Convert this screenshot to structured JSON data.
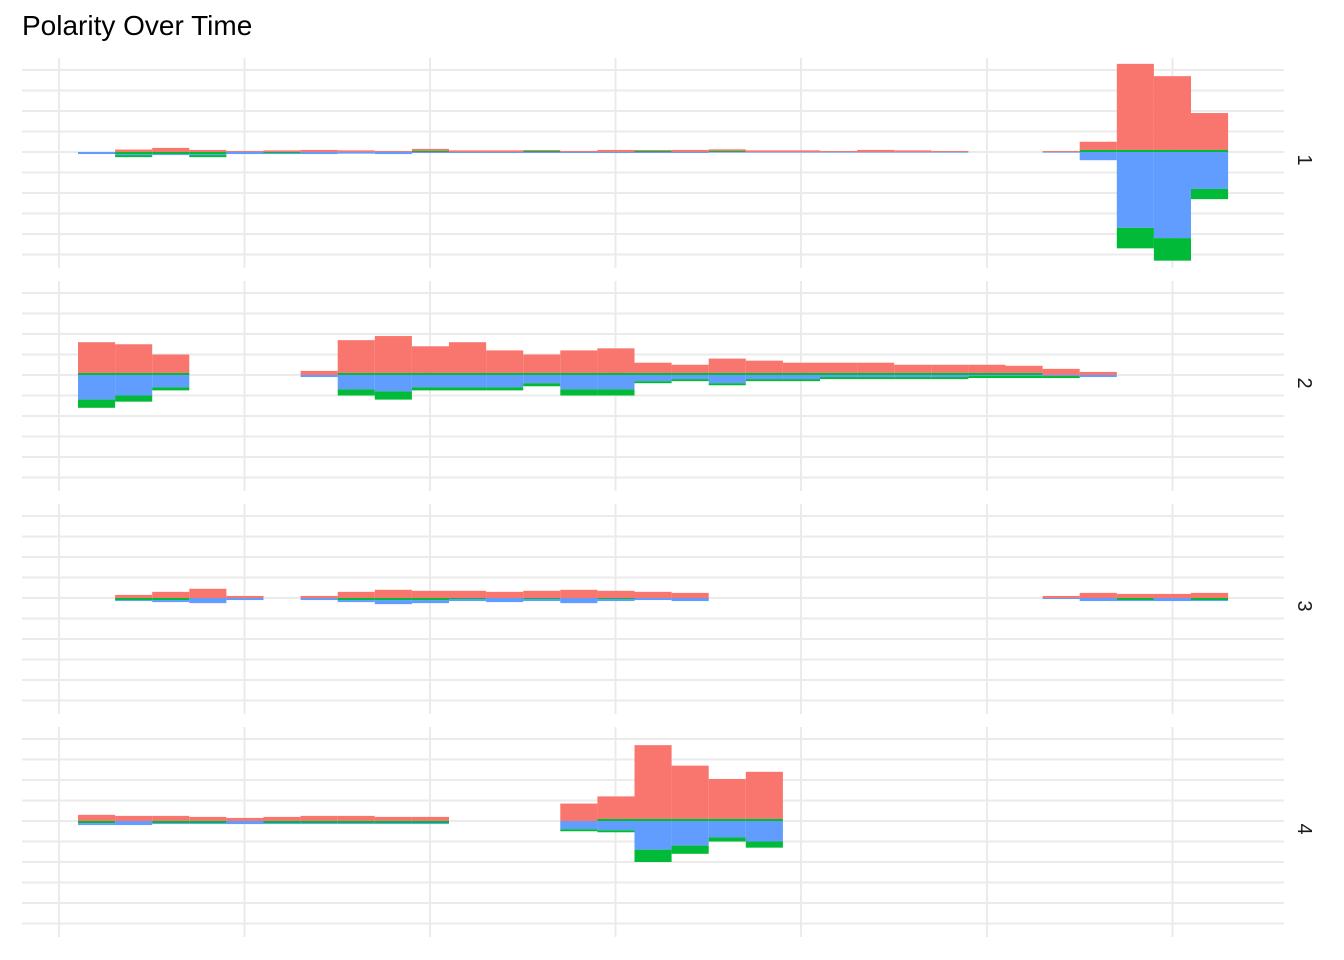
{
  "chart_data": {
    "type": "bar",
    "title": "Polarity Over Time",
    "xlabel": "",
    "ylabel": "",
    "grid": true,
    "legend": "none",
    "stacked": true,
    "x_note": "time bins 0..32 (no tick labels shown)",
    "ylim": [
      -5,
      5
    ],
    "colors": {
      "red": "#F8766D",
      "green": "#00BA38",
      "blue": "#619CFF",
      "grid": "#EBEBEB"
    },
    "facets": [
      {
        "label": "1",
        "bins": [
          {
            "x": 0,
            "red": 0.0,
            "green": 0.0,
            "blue": -0.1
          },
          {
            "x": 1,
            "red": 0.12,
            "green": -0.1,
            "blue": -0.05
          },
          {
            "x": 2,
            "red": 0.2,
            "green": -0.1,
            "blue": -0.05
          },
          {
            "x": 3,
            "red": 0.1,
            "green": -0.1,
            "blue": -0.05
          },
          {
            "x": 4,
            "red": 0.05,
            "green": 0.0,
            "blue": -0.1
          },
          {
            "x": 5,
            "red": 0.08,
            "green": -0.05,
            "blue": -0.05
          },
          {
            "x": 6,
            "red": 0.1,
            "green": 0.0,
            "blue": -0.1
          },
          {
            "x": 7,
            "red": 0.08,
            "green": 0.0,
            "blue": -0.08
          },
          {
            "x": 8,
            "red": 0.05,
            "green": 0.0,
            "blue": -0.1
          },
          {
            "x": 9,
            "red": 0.1,
            "green": 0.05,
            "blue": -0.05
          },
          {
            "x": 10,
            "red": 0.08,
            "green": 0.0,
            "blue": -0.05
          },
          {
            "x": 11,
            "red": 0.08,
            "green": 0.0,
            "blue": -0.05
          },
          {
            "x": 12,
            "red": 0.05,
            "green": 0.05,
            "blue": -0.05
          },
          {
            "x": 13,
            "red": 0.05,
            "green": 0.0,
            "blue": -0.05
          },
          {
            "x": 14,
            "red": 0.1,
            "green": 0.0,
            "blue": -0.05
          },
          {
            "x": 15,
            "red": 0.05,
            "green": 0.05,
            "blue": -0.05
          },
          {
            "x": 16,
            "red": 0.1,
            "green": 0.0,
            "blue": -0.05
          },
          {
            "x": 17,
            "red": 0.08,
            "green": 0.05,
            "blue": -0.03
          },
          {
            "x": 18,
            "red": 0.08,
            "green": 0.0,
            "blue": -0.03
          },
          {
            "x": 19,
            "red": 0.08,
            "green": 0.0,
            "blue": -0.03
          },
          {
            "x": 20,
            "red": 0.05,
            "green": 0.0,
            "blue": -0.03
          },
          {
            "x": 21,
            "red": 0.1,
            "green": 0.0,
            "blue": -0.03
          },
          {
            "x": 22,
            "red": 0.08,
            "green": 0.0,
            "blue": -0.03
          },
          {
            "x": 23,
            "red": 0.05,
            "green": 0.0,
            "blue": -0.03
          },
          {
            "x": 26,
            "red": 0.05,
            "green": 0.0,
            "blue": -0.03
          },
          {
            "x": 27,
            "red": 0.4,
            "green": 0.1,
            "blue": -0.4
          },
          {
            "x": 28,
            "red": 4.2,
            "green": 0.1,
            "blue": -3.7
          },
          {
            "x": 29,
            "red": 3.6,
            "green": 0.1,
            "blue": -4.2
          },
          {
            "x": 30,
            "red": 1.8,
            "green": 0.1,
            "blue": -1.8
          }
        ],
        "neg_green": {
          "28": -1.0,
          "29": -1.1,
          "30": -0.5,
          "1": -0.1,
          "3": -0.1
        }
      },
      {
        "label": "2",
        "bins": [
          {
            "x": 0,
            "red": 1.5,
            "green": 0.1,
            "blue": -1.2
          },
          {
            "x": 1,
            "red": 1.4,
            "green": 0.1,
            "blue": -1.0
          },
          {
            "x": 2,
            "red": 0.9,
            "green": 0.1,
            "blue": -0.6
          },
          {
            "x": 6,
            "red": 0.2,
            "green": 0.0,
            "blue": -0.1
          },
          {
            "x": 7,
            "red": 1.6,
            "green": 0.1,
            "blue": -0.7
          },
          {
            "x": 8,
            "red": 1.8,
            "green": 0.1,
            "blue": -0.8
          },
          {
            "x": 9,
            "red": 1.3,
            "green": 0.1,
            "blue": -0.6
          },
          {
            "x": 10,
            "red": 1.5,
            "green": 0.1,
            "blue": -0.6
          },
          {
            "x": 11,
            "red": 1.1,
            "green": 0.1,
            "blue": -0.6
          },
          {
            "x": 12,
            "red": 0.9,
            "green": 0.1,
            "blue": -0.4
          },
          {
            "x": 13,
            "red": 1.1,
            "green": 0.1,
            "blue": -0.7
          },
          {
            "x": 14,
            "red": 1.2,
            "green": 0.1,
            "blue": -0.7
          },
          {
            "x": 15,
            "red": 0.5,
            "green": 0.1,
            "blue": -0.3
          },
          {
            "x": 16,
            "red": 0.4,
            "green": 0.1,
            "blue": -0.2
          },
          {
            "x": 17,
            "red": 0.7,
            "green": 0.1,
            "blue": -0.4
          },
          {
            "x": 18,
            "red": 0.6,
            "green": 0.1,
            "blue": -0.2
          },
          {
            "x": 19,
            "red": 0.5,
            "green": 0.1,
            "blue": -0.2
          },
          {
            "x": 20,
            "red": 0.5,
            "green": 0.1,
            "blue": -0.1
          },
          {
            "x": 21,
            "red": 0.5,
            "green": 0.1,
            "blue": -0.1
          },
          {
            "x": 22,
            "red": 0.4,
            "green": 0.1,
            "blue": -0.1
          },
          {
            "x": 23,
            "red": 0.4,
            "green": 0.1,
            "blue": -0.1
          },
          {
            "x": 24,
            "red": 0.4,
            "green": 0.1,
            "blue": -0.05
          },
          {
            "x": 25,
            "red": 0.35,
            "green": 0.1,
            "blue": -0.05
          },
          {
            "x": 26,
            "red": 0.3,
            "green": 0.0,
            "blue": -0.05
          },
          {
            "x": 27,
            "red": 0.15,
            "green": 0.0,
            "blue": -0.1
          }
        ],
        "neg_green": {
          "0": -0.4,
          "1": -0.3,
          "2": -0.15,
          "7": -0.3,
          "8": -0.4,
          "9": -0.15,
          "10": -0.15,
          "11": -0.15,
          "12": -0.15,
          "13": -0.3,
          "14": -0.3,
          "15": -0.1,
          "16": -0.1,
          "17": -0.1,
          "18": -0.1,
          "19": -0.1,
          "20": -0.1,
          "21": -0.1,
          "22": -0.1,
          "23": -0.1,
          "24": -0.1,
          "25": -0.1,
          "26": -0.1
        }
      },
      {
        "label": "3",
        "bins": [
          {
            "x": 1,
            "red": 0.15,
            "green": -0.1,
            "blue": -0.05
          },
          {
            "x": 2,
            "red": 0.3,
            "green": -0.1,
            "blue": -0.1
          },
          {
            "x": 3,
            "red": 0.45,
            "green": 0.0,
            "blue": -0.25
          },
          {
            "x": 4,
            "red": 0.1,
            "green": 0.0,
            "blue": -0.1
          },
          {
            "x": 6,
            "red": 0.1,
            "green": 0.0,
            "blue": -0.1
          },
          {
            "x": 7,
            "red": 0.3,
            "green": -0.1,
            "blue": -0.1
          },
          {
            "x": 8,
            "red": 0.4,
            "green": -0.1,
            "blue": -0.2
          },
          {
            "x": 9,
            "red": 0.35,
            "green": -0.1,
            "blue": -0.15
          },
          {
            "x": 10,
            "red": 0.35,
            "green": -0.05,
            "blue": -0.1
          },
          {
            "x": 11,
            "red": 0.3,
            "green": 0.0,
            "blue": -0.2
          },
          {
            "x": 12,
            "red": 0.35,
            "green": -0.05,
            "blue": -0.1
          },
          {
            "x": 13,
            "red": 0.4,
            "green": 0.0,
            "blue": -0.25
          },
          {
            "x": 14,
            "red": 0.35,
            "green": -0.05,
            "blue": -0.1
          },
          {
            "x": 15,
            "red": 0.3,
            "green": 0.0,
            "blue": -0.1
          },
          {
            "x": 16,
            "red": 0.25,
            "green": 0.0,
            "blue": -0.15
          },
          {
            "x": 26,
            "red": 0.1,
            "green": 0.0,
            "blue": -0.05
          },
          {
            "x": 27,
            "red": 0.25,
            "green": 0.0,
            "blue": -0.15
          },
          {
            "x": 28,
            "red": 0.2,
            "green": -0.1,
            "blue": -0.05
          },
          {
            "x": 29,
            "red": 0.2,
            "green": 0.0,
            "blue": -0.15
          },
          {
            "x": 30,
            "red": 0.25,
            "green": -0.1,
            "blue": -0.05
          }
        ],
        "neg_green": {}
      },
      {
        "label": "4",
        "bins": [
          {
            "x": 0,
            "red": 0.3,
            "green": -0.1,
            "blue": -0.1
          },
          {
            "x": 1,
            "red": 0.25,
            "green": 0.0,
            "blue": -0.2
          },
          {
            "x": 2,
            "red": 0.25,
            "green": -0.1,
            "blue": -0.05
          },
          {
            "x": 3,
            "red": 0.2,
            "green": -0.1,
            "blue": -0.05
          },
          {
            "x": 4,
            "red": 0.15,
            "green": 0.0,
            "blue": -0.15
          },
          {
            "x": 5,
            "red": 0.2,
            "green": -0.1,
            "blue": -0.05
          },
          {
            "x": 6,
            "red": 0.25,
            "green": -0.1,
            "blue": -0.05
          },
          {
            "x": 7,
            "red": 0.25,
            "green": -0.1,
            "blue": -0.05
          },
          {
            "x": 8,
            "red": 0.2,
            "green": -0.1,
            "blue": -0.05
          },
          {
            "x": 9,
            "red": 0.2,
            "green": -0.1,
            "blue": -0.05
          },
          {
            "x": 13,
            "red": 0.85,
            "green": 0.0,
            "blue": -0.4
          },
          {
            "x": 14,
            "red": 1.1,
            "green": 0.1,
            "blue": -0.45
          },
          {
            "x": 15,
            "red": 3.6,
            "green": 0.1,
            "blue": -1.4
          },
          {
            "x": 16,
            "red": 2.6,
            "green": 0.1,
            "blue": -1.2
          },
          {
            "x": 17,
            "red": 1.95,
            "green": 0.1,
            "blue": -0.8
          },
          {
            "x": 18,
            "red": 2.3,
            "green": 0.1,
            "blue": -1.0
          }
        ],
        "neg_green": {
          "13": -0.1,
          "14": -0.1,
          "15": -0.6,
          "16": -0.4,
          "17": -0.2,
          "18": -0.3
        }
      }
    ]
  }
}
